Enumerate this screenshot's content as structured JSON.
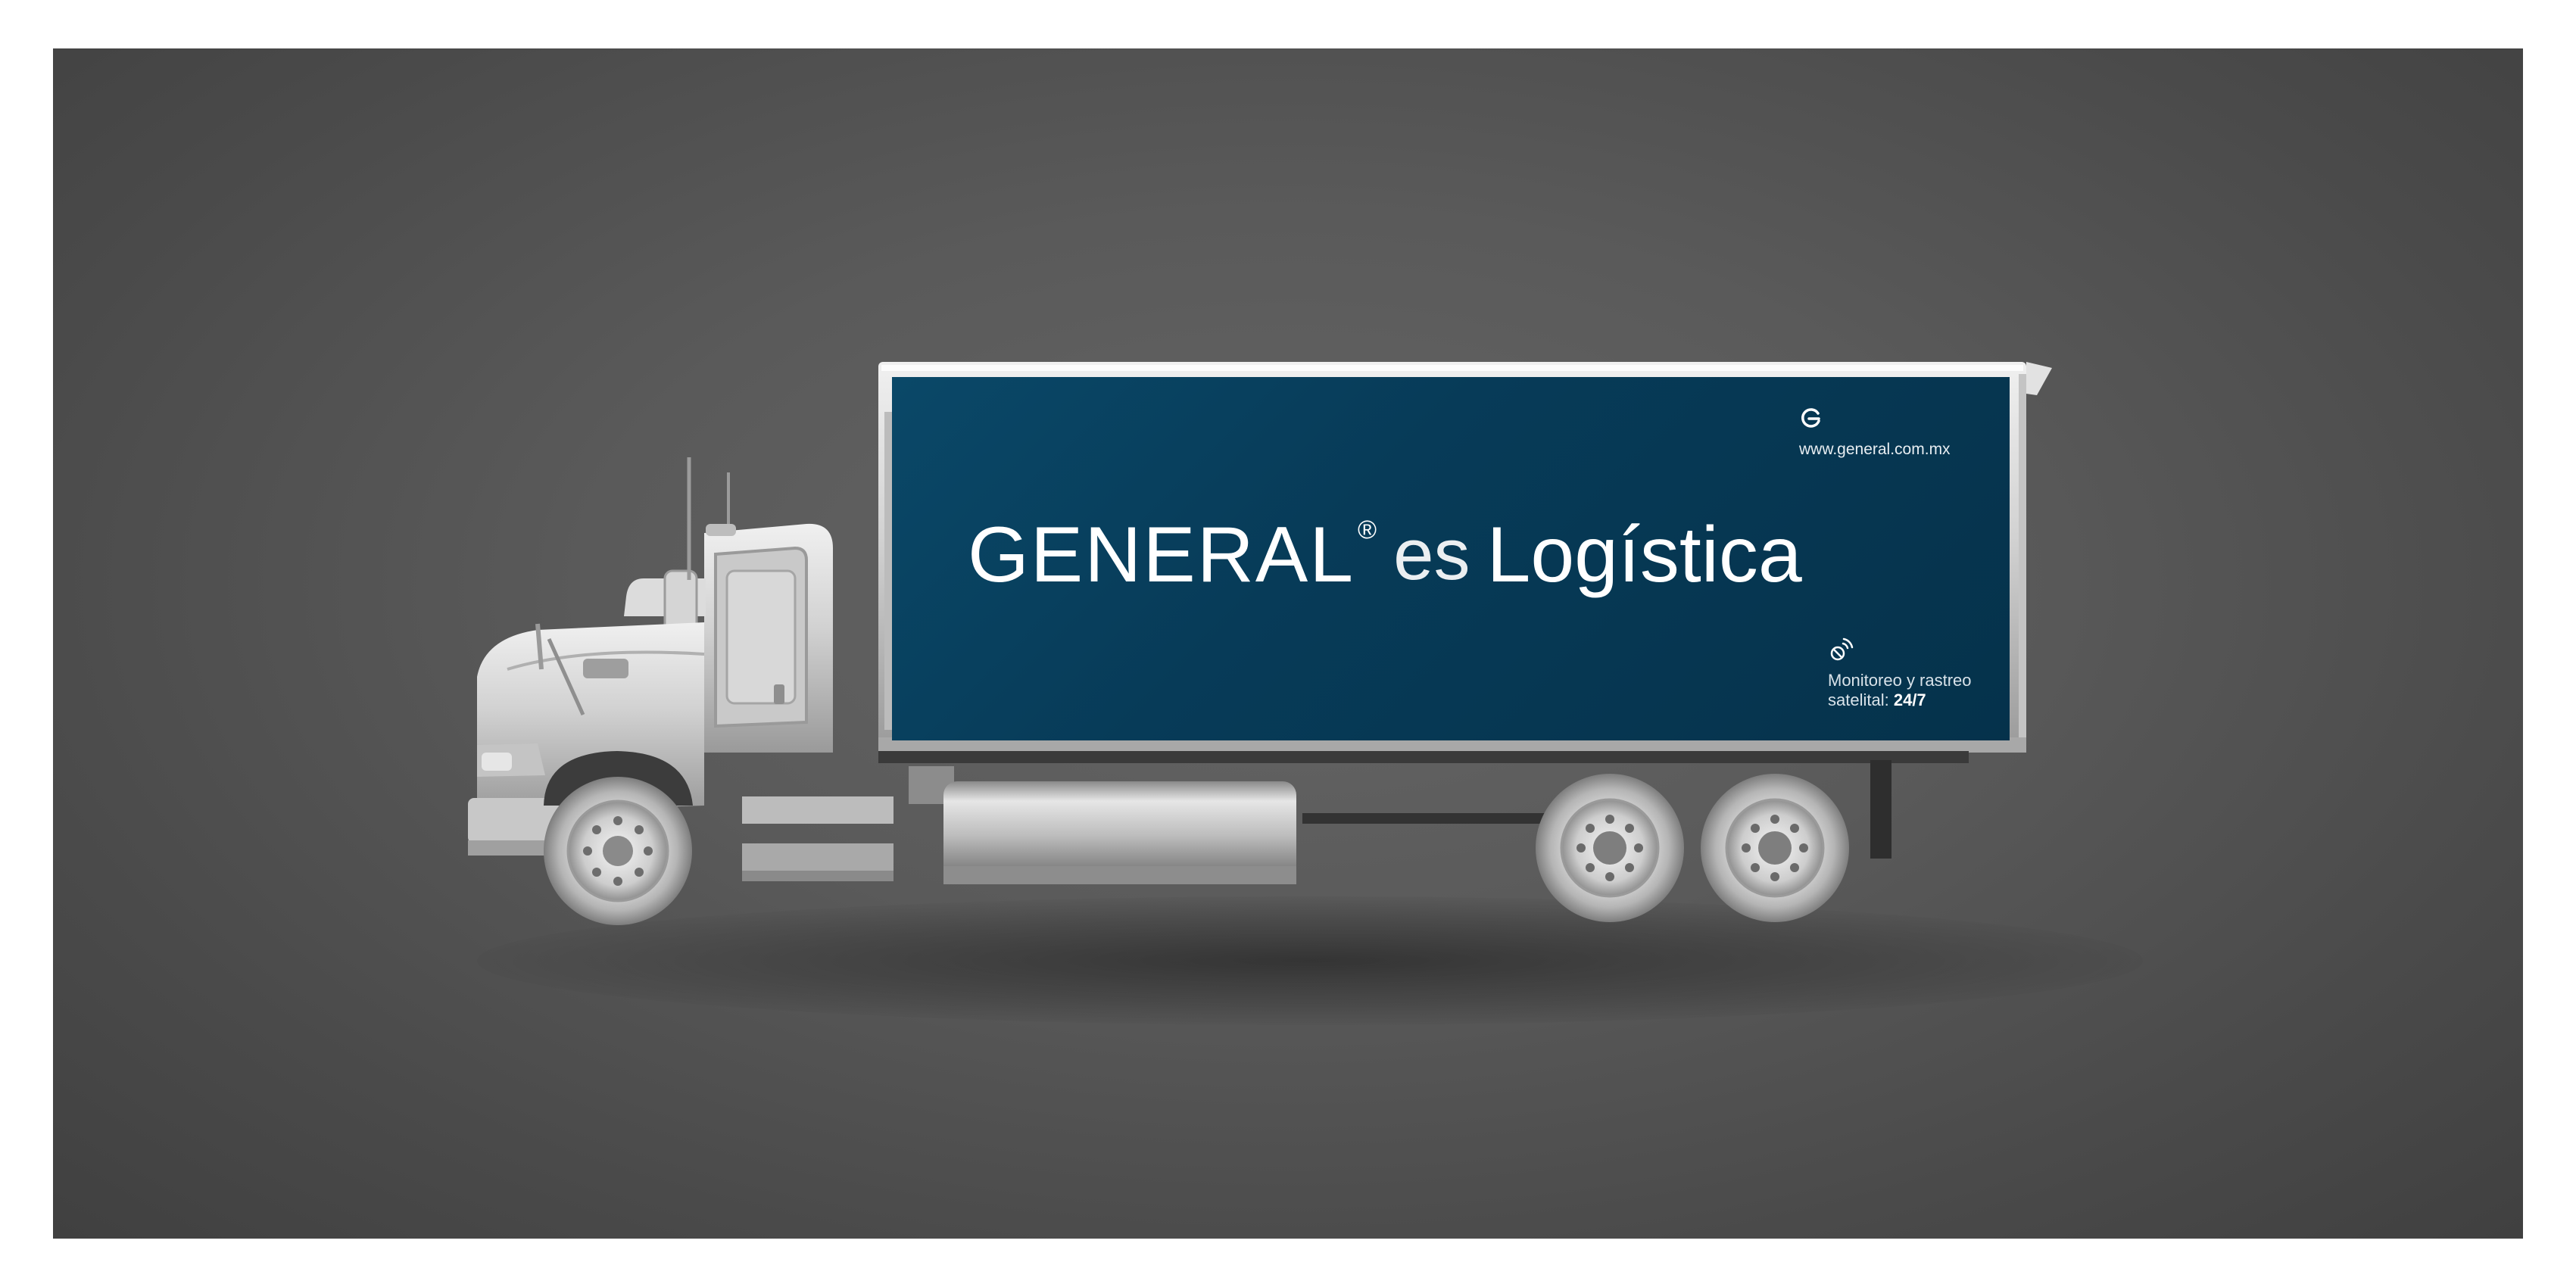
{
  "ad": {
    "brand": "GENERAL",
    "registered_mark": "®",
    "connector": "es",
    "tagline": "Logística",
    "website": "www.general.com.mx",
    "service_line1": "Monitoreo y rastreo",
    "service_line2": "satelital:",
    "service_hours": "24/7",
    "icons": {
      "logo": "general-g-logo-icon",
      "service": "satellite-signal-icon"
    }
  },
  "colors": {
    "panel": "#073b58",
    "background": "#5a5a5a",
    "truck": "#cfcfcf",
    "text": "#ffffff"
  }
}
